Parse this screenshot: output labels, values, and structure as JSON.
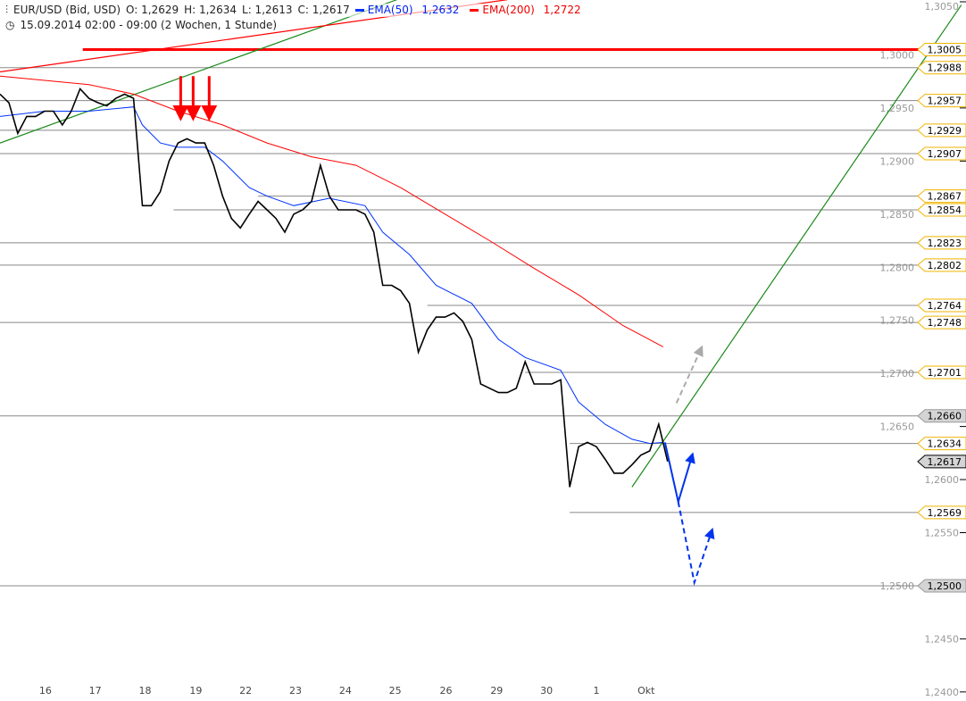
{
  "header": {
    "instrument": "EUR/USD (Bid, USD)",
    "open": "O: 1,2629",
    "high": "H: 1,2634",
    "low": "L: 1,2613",
    "close": "C: 1,2617",
    "ema50_label": "EMA(50)",
    "ema50_value": "1,2632",
    "ema200_label": "EMA(200)",
    "ema200_value": "1,2722",
    "period": "15.09.2014 02:00 - 09:00 (2 Wochen, 1 Stunde)",
    "icons": [
      "candlestick-icon",
      "clock-icon"
    ]
  },
  "colors": {
    "price": "#000000",
    "ema50": "#0033ff",
    "ema200": "#ff0000",
    "trend": "#1a8a1a",
    "level": "#888888",
    "label_border": "#f0b400",
    "label_gray": "#d4d4d4",
    "arrow_red": "#ff0000",
    "arrow_blue": "#0033ee",
    "arrow_gray": "#aaaaaa"
  },
  "chart_data": {
    "type": "line",
    "title": "",
    "xlabel": "",
    "ylabel": "",
    "ylim": [
      1.24,
      1.305
    ],
    "y_axis_position": "right",
    "y_ticks": [
      "1,3050",
      "1,3000",
      "1,2950",
      "1,2900",
      "1,2850",
      "1,2800",
      "1,2750",
      "1,2700",
      "1,2650",
      "1,2600",
      "1,2550",
      "1,2500",
      "1,2450",
      "1,2400"
    ],
    "y_tick_values": [
      1.305,
      1.3,
      1.295,
      1.29,
      1.285,
      1.28,
      1.275,
      1.27,
      1.265,
      1.26,
      1.255,
      1.25,
      1.245,
      1.24
    ],
    "x_ticks": [
      {
        "label": "16",
        "index": 5.1
      },
      {
        "label": "17",
        "index": 10.7
      },
      {
        "label": "18",
        "index": 16.3
      },
      {
        "label": "19",
        "index": 22.0
      },
      {
        "label": "22",
        "index": 27.6
      },
      {
        "label": "23",
        "index": 33.2
      },
      {
        "label": "24",
        "index": 38.8
      },
      {
        "label": "25",
        "index": 44.4
      },
      {
        "label": "26",
        "index": 50.1
      },
      {
        "label": "29",
        "index": 55.8
      },
      {
        "label": "30",
        "index": 61.4
      },
      {
        "label": "1",
        "index": 67.0
      },
      {
        "label": "Okt",
        "index": 72.6
      }
    ],
    "price_close": [
      1.2963,
      1.2955,
      1.2926,
      1.2942,
      1.2942,
      1.2947,
      1.2947,
      1.2934,
      1.2947,
      1.2968,
      1.2959,
      1.2955,
      1.2952,
      1.2959,
      1.2963,
      1.2959,
      1.2858,
      1.2858,
      1.2871,
      1.29,
      1.2917,
      1.2921,
      1.2917,
      1.2917,
      1.2896,
      1.2867,
      1.2846,
      1.2837,
      1.285,
      1.2862,
      1.2854,
      1.2846,
      1.2833,
      1.285,
      1.2854,
      1.2862,
      1.2896,
      1.2867,
      1.2854,
      1.2854,
      1.2854,
      1.285,
      1.2833,
      1.2783,
      1.2783,
      1.2778,
      1.2766,
      1.272,
      1.2741,
      1.2753,
      1.2753,
      1.2757,
      1.2749,
      1.2732,
      1.269,
      1.2686,
      1.2682,
      1.2682,
      1.2686,
      1.2711,
      1.269,
      1.269,
      1.269,
      1.2694,
      1.2593,
      1.2631,
      1.2635,
      1.2631,
      1.2619,
      1.2606,
      1.2606,
      1.2614,
      1.2623,
      1.2627,
      1.2652,
      1.2617
    ],
    "series": [
      {
        "name": "EMA(50)",
        "color": "#0033ff",
        "points": [
          [
            0,
            1.2942
          ],
          [
            5,
            1.2947
          ],
          [
            10,
            1.2947
          ],
          [
            15,
            1.2951
          ],
          [
            16,
            1.2934
          ],
          [
            18,
            1.2917
          ],
          [
            20,
            1.2913
          ],
          [
            23,
            1.2913
          ],
          [
            25,
            1.29
          ],
          [
            28,
            1.2875
          ],
          [
            30,
            1.2867
          ],
          [
            33,
            1.2858
          ],
          [
            37,
            1.2865
          ],
          [
            41,
            1.2858
          ],
          [
            43,
            1.2833
          ],
          [
            46,
            1.2812
          ],
          [
            49,
            1.2783
          ],
          [
            53,
            1.2766
          ],
          [
            56,
            1.2732
          ],
          [
            59,
            1.2715
          ],
          [
            63,
            1.2703
          ],
          [
            65,
            1.2673
          ],
          [
            68,
            1.2652
          ],
          [
            71,
            1.2638
          ],
          [
            73,
            1.2634
          ],
          [
            74.5,
            1.2635
          ]
        ]
      },
      {
        "name": "EMA(200)",
        "color": "#ff0000",
        "points": [
          [
            0,
            1.298
          ],
          [
            10,
            1.2972
          ],
          [
            15,
            1.2963
          ],
          [
            20,
            1.2947
          ],
          [
            25,
            1.2934
          ],
          [
            30,
            1.2917
          ],
          [
            35,
            1.2904
          ],
          [
            40,
            1.2896
          ],
          [
            45,
            1.2875
          ],
          [
            50,
            1.285
          ],
          [
            55,
            1.2825
          ],
          [
            60,
            1.2799
          ],
          [
            65,
            1.2774
          ],
          [
            70,
            1.2745
          ],
          [
            74.5,
            1.2725
          ]
        ]
      }
    ],
    "levels": [
      {
        "value": 1.3005,
        "label": "1,3005",
        "start": 9.3,
        "style": "resistance-red",
        "box": "gold"
      },
      {
        "value": 1.2988,
        "label": "1,2988",
        "start": 0,
        "style": "gray",
        "box": "gold"
      },
      {
        "value": 1.2957,
        "label": "1,2957",
        "start": 0,
        "style": "gray",
        "box": "gold"
      },
      {
        "value": 1.2929,
        "label": "1,2929",
        "start": 0,
        "style": "gray",
        "box": "gold"
      },
      {
        "value": 1.2907,
        "label": "1,2907",
        "start": 0,
        "style": "gray",
        "box": "gold"
      },
      {
        "value": 1.2867,
        "label": "1,2867",
        "start": 29,
        "style": "gray",
        "box": "gold"
      },
      {
        "value": 1.2854,
        "label": "1,2854",
        "start": 19.5,
        "style": "gray",
        "box": "gold"
      },
      {
        "value": 1.2823,
        "label": "1,2823",
        "start": 0,
        "style": "gray",
        "box": "gold"
      },
      {
        "value": 1.2802,
        "label": "1,2802",
        "start": 0,
        "style": "gray",
        "box": "gold"
      },
      {
        "value": 1.2764,
        "label": "1,2764",
        "start": 48,
        "style": "gray",
        "box": "gold"
      },
      {
        "value": 1.2748,
        "label": "1,2748",
        "start": 0,
        "style": "gray",
        "box": "gold"
      },
      {
        "value": 1.2701,
        "label": "1,2701",
        "start": 59,
        "style": "gray",
        "box": "gold"
      },
      {
        "value": 1.266,
        "label": "1,2660",
        "start": 0,
        "style": "gray",
        "box": "gray"
      },
      {
        "value": 1.2634,
        "label": "1,2634",
        "start": 64,
        "style": "gray",
        "box": "gold"
      },
      {
        "value": 1.2617,
        "label": "1,2617",
        "start": null,
        "style": "current",
        "box": "current"
      },
      {
        "value": 1.2569,
        "label": "1,2569",
        "start": 64,
        "style": "gray",
        "box": "gold"
      },
      {
        "value": 1.25,
        "label": "1,2500",
        "start": 0,
        "style": "gray",
        "box": "gray"
      }
    ],
    "trendlines": [
      {
        "color": "#1a8a1a",
        "from": [
          0,
          1.2917
        ],
        "to": [
          44.6,
          1.3052
        ]
      },
      {
        "color": "#1a8a1a",
        "from": [
          71,
          1.2593
        ],
        "to": [
          108,
          1.3047
        ]
      },
      {
        "color": "#ff0000",
        "from": [
          0,
          1.2984
        ],
        "to": [
          57,
          1.3052
        ]
      }
    ],
    "annotations": {
      "red_down_arrows": [
        [
          20.3,
          1.298,
          1.294
        ],
        [
          21.7,
          1.298,
          1.294
        ],
        [
          23.5,
          1.298,
          1.294
        ]
      ],
      "blue_solid_path": [
        [
          74.7,
          1.2635
        ],
        [
          76.2,
          1.2579
        ],
        [
          77.7,
          1.2621
        ]
      ],
      "blue_dashed_path": [
        [
          76.2,
          1.2579
        ],
        [
          78,
          1.2503
        ],
        [
          79.9,
          1.255
        ]
      ],
      "gray_dashed_path": [
        [
          76,
          1.2672
        ],
        [
          78.7,
          1.2722
        ]
      ]
    }
  }
}
